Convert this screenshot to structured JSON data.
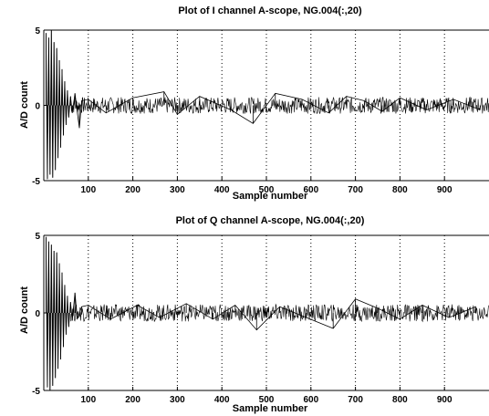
{
  "chart_data": [
    {
      "type": "line",
      "title": "Plot of I channel A-scope, NG.004(:,20)",
      "xlabel": "Sample number",
      "ylabel": "A/D count",
      "xlim": [
        0,
        1000
      ],
      "ylim": [
        -5,
        5
      ],
      "xticks": [
        100,
        200,
        300,
        400,
        500,
        600,
        700,
        800,
        900
      ],
      "yticks": [
        -5,
        0,
        5
      ],
      "grid": "x-dotted",
      "series": [
        {
          "values": [
            {
              "x": 5,
              "y": 4.8
            },
            {
              "x": 8,
              "y": -4.9
            },
            {
              "x": 11,
              "y": 4.5
            },
            {
              "x": 14,
              "y": -4.6
            },
            {
              "x": 17,
              "y": 5.0
            },
            {
              "x": 20,
              "y": -4.8
            },
            {
              "x": 23,
              "y": 4.2
            },
            {
              "x": 26,
              "y": -4.3
            },
            {
              "x": 29,
              "y": 3.8
            },
            {
              "x": 32,
              "y": -3.5
            },
            {
              "x": 35,
              "y": 3.0
            },
            {
              "x": 38,
              "y": -2.8
            },
            {
              "x": 41,
              "y": 2.4
            },
            {
              "x": 44,
              "y": -2.0
            },
            {
              "x": 47,
              "y": 1.6
            },
            {
              "x": 50,
              "y": -1.3
            },
            {
              "x": 53,
              "y": 1.0
            },
            {
              "x": 56,
              "y": -0.8
            },
            {
              "x": 60,
              "y": 0.6
            },
            {
              "x": 64,
              "y": -0.5
            },
            {
              "x": 70,
              "y": 0.8
            },
            {
              "x": 75,
              "y": -0.4
            },
            {
              "x": 80,
              "y": -1.5
            },
            {
              "x": 85,
              "y": 0.3
            },
            {
              "x": 100,
              "y": 0.4
            },
            {
              "x": 140,
              "y": -0.5
            },
            {
              "x": 200,
              "y": 0.5
            },
            {
              "x": 270,
              "y": 0.9
            },
            {
              "x": 300,
              "y": -0.6
            },
            {
              "x": 350,
              "y": 0.6
            },
            {
              "x": 420,
              "y": -0.3
            },
            {
              "x": 470,
              "y": -1.2
            },
            {
              "x": 520,
              "y": 0.8
            },
            {
              "x": 580,
              "y": 0.4
            },
            {
              "x": 640,
              "y": -0.5
            },
            {
              "x": 680,
              "y": 0.6
            },
            {
              "x": 720,
              "y": 0.3
            },
            {
              "x": 760,
              "y": -0.4
            },
            {
              "x": 800,
              "y": 0.5
            },
            {
              "x": 860,
              "y": -0.3
            },
            {
              "x": 920,
              "y": 0.4
            },
            {
              "x": 980,
              "y": -0.3
            }
          ]
        }
      ]
    },
    {
      "type": "line",
      "title": "Plot of Q channel A-scope, NG.004(:,20)",
      "xlabel": "Sample number",
      "ylabel": "A/D count",
      "xlim": [
        0,
        1000
      ],
      "ylim": [
        -5,
        5
      ],
      "xticks": [
        100,
        200,
        300,
        400,
        500,
        600,
        700,
        800,
        900
      ],
      "yticks": [
        -5,
        0,
        5
      ],
      "grid": "x-dotted",
      "series": [
        {
          "values": [
            {
              "x": 5,
              "y": 4.9
            },
            {
              "x": 8,
              "y": -4.8
            },
            {
              "x": 11,
              "y": 4.6
            },
            {
              "x": 14,
              "y": -5.0
            },
            {
              "x": 17,
              "y": 4.4
            },
            {
              "x": 20,
              "y": -4.7
            },
            {
              "x": 23,
              "y": 4.0
            },
            {
              "x": 26,
              "y": -4.2
            },
            {
              "x": 29,
              "y": 3.9
            },
            {
              "x": 32,
              "y": -3.6
            },
            {
              "x": 35,
              "y": 3.2
            },
            {
              "x": 38,
              "y": -3.0
            },
            {
              "x": 41,
              "y": 2.6
            },
            {
              "x": 44,
              "y": -2.2
            },
            {
              "x": 47,
              "y": 1.8
            },
            {
              "x": 50,
              "y": -1.4
            },
            {
              "x": 53,
              "y": 1.1
            },
            {
              "x": 56,
              "y": -0.9
            },
            {
              "x": 60,
              "y": 0.7
            },
            {
              "x": 64,
              "y": -0.5
            },
            {
              "x": 70,
              "y": 1.3
            },
            {
              "x": 75,
              "y": -0.4
            },
            {
              "x": 85,
              "y": 0.4
            },
            {
              "x": 100,
              "y": 0.5
            },
            {
              "x": 150,
              "y": -0.4
            },
            {
              "x": 210,
              "y": 0.5
            },
            {
              "x": 260,
              "y": -0.3
            },
            {
              "x": 320,
              "y": 0.6
            },
            {
              "x": 380,
              "y": -0.4
            },
            {
              "x": 430,
              "y": 0.5
            },
            {
              "x": 478,
              "y": -1.1
            },
            {
              "x": 530,
              "y": 0.4
            },
            {
              "x": 590,
              "y": -0.3
            },
            {
              "x": 650,
              "y": -1.0
            },
            {
              "x": 700,
              "y": 0.9
            },
            {
              "x": 750,
              "y": 0.3
            },
            {
              "x": 800,
              "y": -0.4
            },
            {
              "x": 850,
              "y": 0.5
            },
            {
              "x": 910,
              "y": -0.3
            },
            {
              "x": 970,
              "y": 0.4
            }
          ]
        }
      ]
    }
  ],
  "colors": {
    "trace": "#000000",
    "axes": "#000000",
    "grid": "#000000",
    "background": "#ffffff"
  }
}
